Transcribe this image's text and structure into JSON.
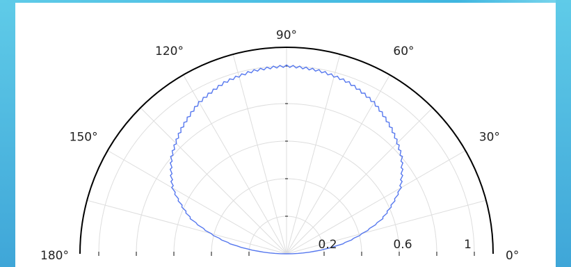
{
  "chart_data": {
    "type": "polar-line",
    "title": "",
    "theta_unit": "degrees",
    "theta_ticks": [
      0,
      30,
      60,
      90,
      120,
      150,
      180
    ],
    "theta_tick_labels": [
      "0°",
      "30°",
      "60°",
      "90°",
      "120°",
      "150°",
      "180°"
    ],
    "r_range": [
      0,
      1.1
    ],
    "r_grid": [
      0.2,
      0.4,
      0.6,
      0.8,
      1.0
    ],
    "r_tick_labels": [
      {
        "value": 0.2,
        "label": "0.2"
      },
      {
        "value": 0.6,
        "label": "0.6"
      },
      {
        "value": 1.0,
        "label": "1"
      }
    ],
    "grid": true,
    "series": [
      {
        "color": "#5577ee",
        "theta": [
          0,
          10,
          20,
          30,
          40,
          50,
          60,
          70,
          80,
          90,
          100,
          110,
          120,
          130,
          140,
          150,
          160,
          170,
          180
        ],
        "r": [
          0.0,
          0.3,
          0.54,
          0.7,
          0.8,
          0.87,
          0.93,
          0.97,
          0.99,
          1.0,
          0.99,
          0.97,
          0.93,
          0.87,
          0.8,
          0.7,
          0.54,
          0.3,
          0.0
        ]
      }
    ]
  },
  "colors": {
    "frame": "#4ab8e2",
    "outer_circle": "#000000",
    "grid": "#dddddd",
    "curve": "#5577ee"
  }
}
